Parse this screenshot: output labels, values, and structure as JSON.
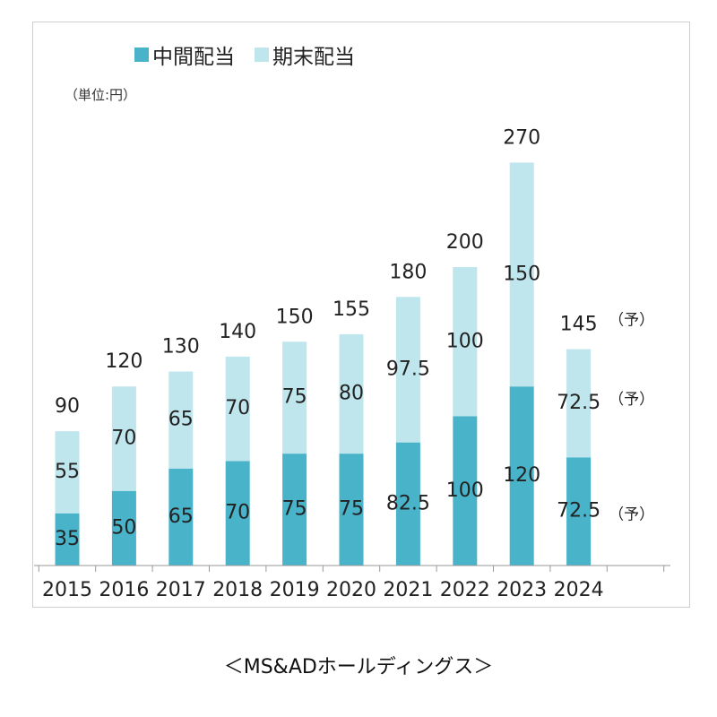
{
  "legend": {
    "interim_label": "中間配当",
    "final_label": "期末配当"
  },
  "unit_label": "（単位:円）",
  "caption": "＜MS&ADホールディングス＞",
  "colors": {
    "interim": "#49b3c9",
    "final": "#bfe5ed",
    "axis": "#9a9a9a",
    "text": "#222222"
  },
  "chart_data": {
    "type": "bar",
    "stacked": true,
    "categories": [
      "2015",
      "2016",
      "2017",
      "2018",
      "2019",
      "2020",
      "2021",
      "2022",
      "2023",
      "2024"
    ],
    "series": [
      {
        "name": "中間配当",
        "values": [
          35,
          50,
          65,
          70,
          75,
          75,
          82.5,
          100,
          120,
          72.5
        ],
        "labels": [
          "35",
          "50",
          "65",
          "70",
          "75",
          "75",
          "82.5",
          "100",
          "120",
          "72.5"
        ]
      },
      {
        "name": "期末配当",
        "values": [
          55,
          70,
          65,
          70,
          75,
          80,
          97.5,
          100,
          150,
          72.5
        ],
        "labels": [
          "55",
          "70",
          "65",
          "70",
          "75",
          "80",
          "97.5",
          "100",
          "150",
          "72.5"
        ]
      }
    ],
    "totals": [
      90,
      120,
      130,
      140,
      150,
      155,
      180,
      200,
      270,
      145
    ],
    "total_labels": [
      "90",
      "120",
      "130",
      "140",
      "150",
      "155",
      "180",
      "200",
      "270",
      "145"
    ],
    "forecast_mark": "（予）",
    "forecast_index": 9,
    "ylim": [
      0,
      270
    ],
    "grid": false,
    "legend_position": "top"
  }
}
